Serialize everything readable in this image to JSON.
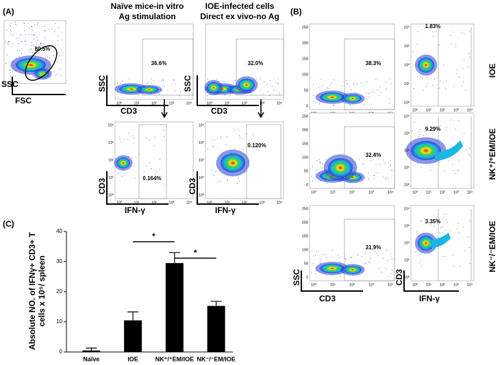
{
  "panel_labels": [
    "(A)",
    "(B)",
    "(C)"
  ],
  "panel_a": {
    "titles": [
      [
        "Naïve mice-in vitro",
        "Ag stimulation"
      ],
      [
        "IOE-infected cells",
        "Direct ex vivo-no Ag"
      ]
    ],
    "gates": [
      "80.5%",
      "36.6%",
      "32.0%",
      "0.164%",
      "0.120%"
    ]
  },
  "axis_labels": {
    "ssc": "SSC",
    "fsc": "FSC",
    "cd3": "CD3",
    "ifn": "IFN-γ"
  },
  "panel_b": {
    "rows": [
      "IOE",
      "NK⁺/⁺EM/IOE",
      "NK⁻/⁻EM/IOE"
    ],
    "left_gates": [
      "38.3%",
      "32.4%",
      "31.9%"
    ],
    "right_gates": [
      "1.83%",
      "9.29%",
      "3.35%"
    ]
  },
  "flow_ticks": {
    "log": [
      "10⁰",
      "10¹",
      "10²",
      "10³",
      "10⁴"
    ],
    "linear": [
      "0",
      "50",
      "100",
      "150",
      "200",
      "250"
    ]
  },
  "chart_data": {
    "type": "bar",
    "ylabel": [
      "Absolute NO. of IFNγ+ CD3+ T",
      "cells x 10⁵/ spleen"
    ],
    "categories": [
      "Naïve",
      "IOE",
      "NK⁺/⁺EM/IOE",
      "NK⁻/⁻EM/IOE"
    ],
    "values": [
      0.5,
      10.5,
      29.5,
      15.3
    ],
    "errors": [
      0.8,
      2.8,
      3.5,
      1.5
    ],
    "color": "#000000",
    "ylim": [
      0,
      40
    ],
    "yticks": [
      0,
      10,
      20,
      30,
      40
    ],
    "significance": [
      "*",
      "*"
    ]
  }
}
